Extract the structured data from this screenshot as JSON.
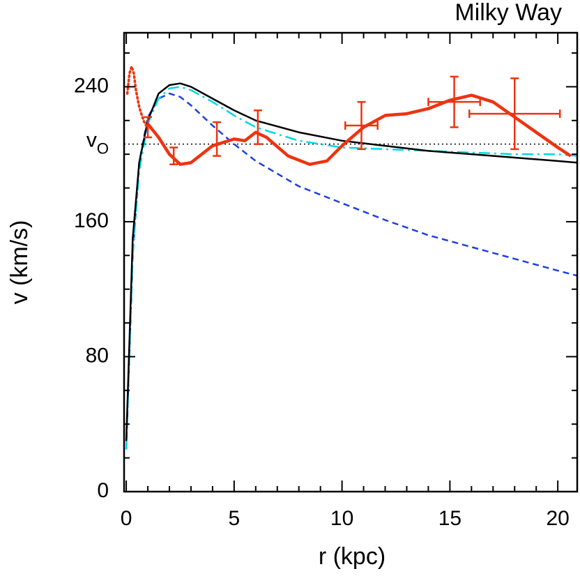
{
  "chart_data": {
    "type": "line",
    "title": "Milky Way",
    "xlabel": "r (kpc)",
    "ylabel": "v (km/s)",
    "xlim": [
      -0.1,
      20.9
    ],
    "ylim": [
      0,
      272
    ],
    "xticks": [
      0,
      5,
      10,
      15,
      20
    ],
    "yticks": [
      0,
      80,
      160,
      240
    ],
    "xminorticks": [
      1,
      2,
      3,
      4,
      6,
      7,
      8,
      9,
      11,
      12,
      13,
      14,
      16,
      17,
      18,
      19
    ],
    "yminorticks": [
      20,
      40,
      60,
      100,
      120,
      140,
      180,
      200,
      220,
      260
    ],
    "reference_line": {
      "value": 206,
      "label": "v",
      "label_sub": "O",
      "color": "#000000",
      "dash": "dotted"
    },
    "series": [
      {
        "color": "#1f3fe0",
        "dash": "dashed",
        "width": 2.5,
        "x": [
          0,
          0.3,
          0.6,
          1,
          1.5,
          2,
          2.5,
          3,
          4,
          5,
          6,
          8,
          10,
          12,
          14,
          16,
          18,
          20,
          20.9
        ],
        "values": [
          25,
          140,
          195,
          222,
          233,
          236,
          234,
          229,
          217,
          206,
          196,
          181,
          171,
          161,
          152,
          145,
          138,
          131,
          128
        ]
      },
      {
        "color": "#00d8e8",
        "dash": "dashdot",
        "width": 2.5,
        "x": [
          0,
          0.3,
          0.6,
          1,
          1.5,
          2,
          2.5,
          3,
          4,
          5,
          6,
          8,
          10,
          12,
          14,
          16,
          18,
          20,
          20.9
        ],
        "values": [
          25,
          140,
          190,
          218,
          233,
          239,
          240,
          238,
          231,
          223,
          216,
          208,
          204,
          203,
          202,
          201,
          200,
          200,
          199
        ]
      },
      {
        "color": "#000000",
        "dash": "solid",
        "width": 2.5,
        "x": [
          0,
          0.3,
          0.6,
          1,
          1.5,
          2,
          2.5,
          3,
          4,
          5,
          6,
          8,
          10,
          12,
          14,
          16,
          18,
          20,
          20.9
        ],
        "values": [
          30,
          150,
          195,
          220,
          236,
          241,
          242,
          240,
          233,
          226,
          220,
          213,
          208,
          205,
          202,
          200,
          198,
          196,
          195
        ]
      },
      {
        "color": "#ee3311",
        "dash": "dotted",
        "width": 3.5,
        "x": [
          0.05,
          0.15,
          0.25,
          0.35,
          0.45,
          0.6,
          0.8,
          1
        ],
        "values": [
          236,
          248,
          252,
          248,
          238,
          228,
          220,
          215
        ]
      },
      {
        "color": "#ee3311",
        "dash": "solid",
        "width": 4.5,
        "x": [
          1,
          1.5,
          2,
          2.5,
          3,
          4,
          5,
          5.5,
          6,
          6.5,
          7.5,
          8.5,
          9.3,
          10,
          11,
          12,
          13,
          14,
          15,
          16,
          17,
          18,
          19,
          20,
          20.6
        ],
        "values": [
          218,
          210,
          200,
          194,
          195,
          205,
          209,
          208,
          213,
          210,
          199,
          194,
          196,
          205,
          216,
          223,
          224,
          227,
          232,
          235,
          231,
          222,
          213,
          204,
          199
        ]
      }
    ],
    "errorbars": {
      "color": "#ee3311",
      "x": [
        1.0,
        2.2,
        4.2,
        6.1,
        10.9,
        15.2,
        18.0
      ],
      "values": [
        216,
        199,
        209,
        216,
        217,
        231,
        224
      ],
      "yerr": [
        6,
        5,
        10,
        10,
        14,
        15,
        21
      ],
      "xerr": [
        null,
        null,
        null,
        null,
        0.75,
        1.2,
        2.1
      ]
    }
  }
}
